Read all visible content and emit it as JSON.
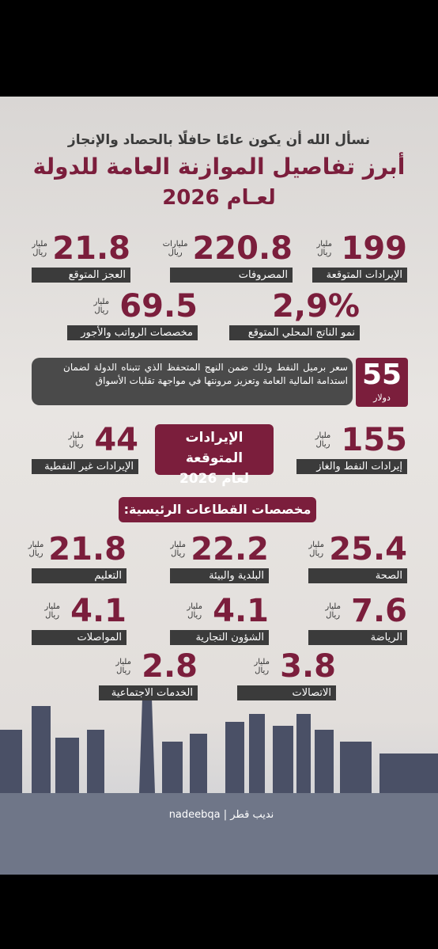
{
  "header": {
    "subtitle": "نسأل الله أن يكون عامًا حافلًا بالحصاد والإنجاز",
    "title": "أبرز تفاصيل الموازنة العامة للدولة",
    "year": "لعـام 2026"
  },
  "summary": [
    {
      "value": 199,
      "unit": "مليار ريال",
      "label": "الإيرادات المتوقعة"
    },
    {
      "value": 220.8,
      "unit": "مليارات ريال",
      "label": "المصروفات"
    },
    {
      "value": 21.8,
      "unit": "مليار ريال",
      "label": "العجز المتوقع"
    },
    {
      "value": "2,9%",
      "label": "نمو الناتج المحلي المتوقع"
    },
    {
      "value": 69.5,
      "unit": "مليار ريال",
      "label": "مخصصات الرواتب والأجور"
    }
  ],
  "oil": {
    "value": 55,
    "unit": "دولار",
    "text": "سعر برميل النفط وذلك ضمن النهج المتحفظ الذي تتبناه الدولة لضمان استدامة المالية العامة وتعزيز مرونتها في مواجهة تقلبات الأسواق"
  },
  "revenue": {
    "title": "الإيرادات المتوقعة",
    "year": "لعام 2026",
    "items": [
      {
        "value": 155,
        "unit": "مليار ريال",
        "label": "إيرادات النفط والغاز"
      },
      {
        "value": 44,
        "unit": "مليار ريال",
        "label": "الإيرادات غير النفطية"
      }
    ]
  },
  "sectors": {
    "title": "مخصصات القطاعات الرئيسية:",
    "items": [
      {
        "value": 25.4,
        "unit": "مليار ريال",
        "label": "الصحة"
      },
      {
        "value": 22.2,
        "unit": "مليار ريال",
        "label": "البلدية والبيئة"
      },
      {
        "value": 21.8,
        "unit": "مليار ريال",
        "label": "التعليم"
      },
      {
        "value": 7.6,
        "unit": "مليار ريال",
        "label": "الرياضة"
      },
      {
        "value": 4.1,
        "unit": "مليار ريال",
        "label": "الشؤون التجارية"
      },
      {
        "value": 4.1,
        "unit": "مليار ريال",
        "label": "المواصلات"
      },
      {
        "value": 3.8,
        "unit": "مليار ريال",
        "label": "الاتصالات"
      },
      {
        "value": 2.8,
        "unit": "مليار ريال",
        "label": "الخدمات الاجتماعية"
      }
    ]
  },
  "footer": {
    "brand": "نديب قطر",
    "handle": "nadeebqa"
  }
}
